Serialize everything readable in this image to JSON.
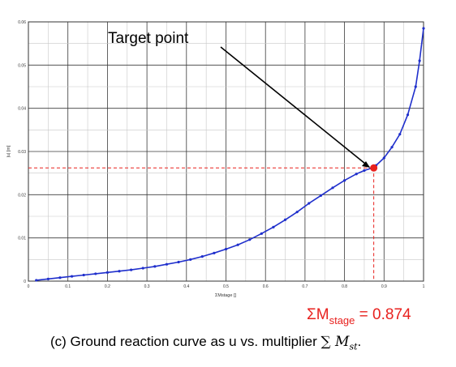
{
  "chart_data": {
    "type": "line",
    "title": "",
    "xlabel": "ΣMstage []",
    "ylabel": "|u| [m]",
    "xlim": [
      0,
      1
    ],
    "ylim": [
      0,
      0.06
    ],
    "xticks": [
      "0",
      "0.1",
      "0.2",
      "0.3",
      "0.4",
      "0.5",
      "0.6",
      "0.7",
      "0.8",
      "0.9",
      "1"
    ],
    "yticks": [
      "0",
      "0.01",
      "0.02",
      "0.03",
      "0.04",
      "0.05",
      "0.06"
    ],
    "grid": true,
    "series": [
      {
        "color": "#1f2fcc",
        "x": [
          0.02,
          0.05,
          0.08,
          0.11,
          0.14,
          0.17,
          0.2,
          0.23,
          0.26,
          0.29,
          0.32,
          0.35,
          0.38,
          0.41,
          0.44,
          0.47,
          0.5,
          0.53,
          0.56,
          0.59,
          0.62,
          0.65,
          0.68,
          0.71,
          0.74,
          0.77,
          0.8,
          0.83,
          0.85,
          0.87,
          0.88,
          0.9,
          0.92,
          0.94,
          0.96,
          0.98,
          0.99,
          1.0
        ],
        "y": [
          0.0002,
          0.0005,
          0.0008,
          0.0011,
          0.0014,
          0.0017,
          0.002,
          0.0023,
          0.0026,
          0.003,
          0.0034,
          0.0039,
          0.0044,
          0.005,
          0.0057,
          0.0065,
          0.0074,
          0.0084,
          0.0096,
          0.011,
          0.0125,
          0.0142,
          0.016,
          0.018,
          0.0198,
          0.0216,
          0.0233,
          0.0248,
          0.0256,
          0.0262,
          0.0268,
          0.0285,
          0.031,
          0.034,
          0.0385,
          0.045,
          0.051,
          0.0585
        ]
      }
    ],
    "target_point": {
      "x": 0.874,
      "y": 0.0262,
      "color": "#e8211e"
    },
    "annotation": "Target point"
  },
  "result": {
    "prefix": "ΣM",
    "subscript": "stage",
    "suffix": " = 0.874"
  },
  "caption": {
    "text": "(c)   Ground reaction curve as u vs. multiplier ",
    "math_sigma": "∑",
    "math_m": " M",
    "math_sub": "st",
    "end": "."
  }
}
